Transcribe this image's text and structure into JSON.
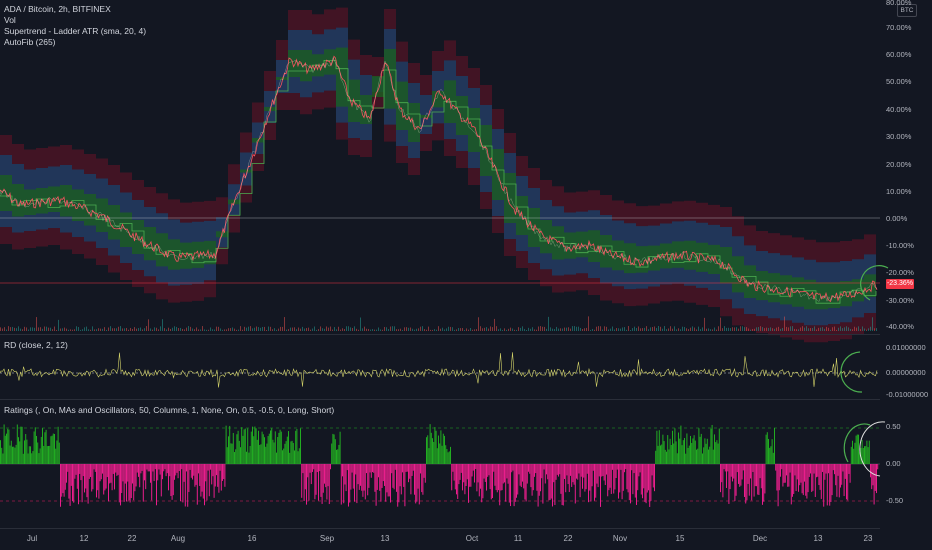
{
  "main_legend": {
    "symbol": "ADA / Bitcoin, 2h, BITFINEX",
    "vol": "Vol",
    "supertrend": "Supertrend - Ladder ATR (sma, 20, 4)",
    "autofib": "AutoFib (265)"
  },
  "currency_badge": "BTC",
  "price_badge": "-23.36%",
  "main_axis_ticks": [
    "80.00%",
    "70.00%",
    "60.00%",
    "50.00%",
    "40.00%",
    "30.00%",
    "20.00%",
    "10.00%",
    "0.00%",
    "-10.00%",
    "-20.00%",
    "-30.00%",
    "-40.00%"
  ],
  "rd_pane": {
    "legend": "RD (close, 2, 12)",
    "ticks": [
      "0.01000000",
      "0.00000000",
      "-0.01000000"
    ]
  },
  "ratings_pane": {
    "legend": "Ratings (, On, MAs and Oscillators, 50, Columns, 1, None, On, 0.5, -0.5, 0, Long, Short)",
    "ticks": [
      "0.50",
      "0.00",
      "-0.50"
    ]
  },
  "time_axis": [
    "Jul",
    "12",
    "22",
    "Aug",
    "16",
    "Sep",
    "13",
    "Oct",
    "11",
    "22",
    "Nov",
    "15",
    "Dec",
    "13",
    "23"
  ],
  "colors": {
    "background": "#131722",
    "price_line": "#f7525f",
    "supertrend_green": "#26a69a",
    "ladder_green": "#1b5e20",
    "ladder_blue": "#1e3a5f",
    "ladder_red": "#4a1424",
    "rating_positive": "#22ab22",
    "rating_negative": "#e91e8c",
    "rd_line": "#d4d46a",
    "annotation_circle": "#4caf50"
  }
}
